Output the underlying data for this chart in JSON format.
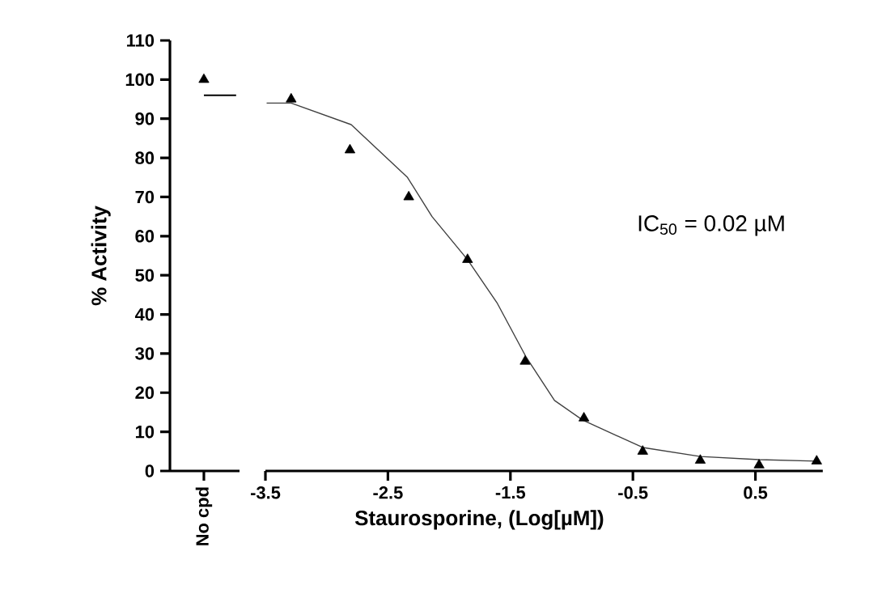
{
  "chart_data": [
    {
      "type": "scatter",
      "categories": [
        "No cpd"
      ],
      "values": [
        100
      ],
      "color": "#000000",
      "marker": "triangle",
      "ylabel": "% Activity",
      "ylim": [
        0,
        110
      ],
      "yticks": [
        0,
        10,
        20,
        30,
        40,
        50,
        60,
        70,
        80,
        90,
        100,
        110
      ],
      "ref_lines": [
        {
          "axis": "y",
          "value": 96,
          "color": "#000000"
        }
      ]
    },
    {
      "type": "scatter",
      "xlabel": "Staurosporine, (Log[µM])",
      "xlim": [
        -3.5,
        1.05
      ],
      "xticks": [
        -3.5,
        -2.5,
        -1.5,
        -0.5,
        0.5
      ],
      "ylim": [
        0,
        110
      ],
      "tick_labels": "x",
      "annotations": [
        "IC$_{50}$ = 0.02 µM"
      ],
      "series": [
        {
          "type": "scatter",
          "marker": "triangle",
          "color": "#000000",
          "x": [
            -3.29,
            -2.81,
            -2.33,
            -1.85,
            -1.38,
            -0.9,
            -0.42,
            0.05,
            0.53,
            1.0
          ],
          "values": [
            95,
            82,
            70,
            54,
            28,
            13.5,
            5,
            2.7,
            1.5,
            2.5
          ]
        },
        {
          "type": "line",
          "marker": "none",
          "color": "#404040",
          "x": [
            -3.49,
            -3.29,
            -2.8,
            -2.34,
            -2.14,
            -1.85,
            -1.61,
            -1.37,
            -1.14,
            -0.91,
            -0.42,
            0.05,
            0.53,
            1.0
          ],
          "values": [
            94,
            94,
            88.5,
            75,
            65,
            54,
            43,
            29,
            18,
            13,
            6,
            3.7,
            2.9,
            2.5
          ]
        }
      ]
    }
  ]
}
